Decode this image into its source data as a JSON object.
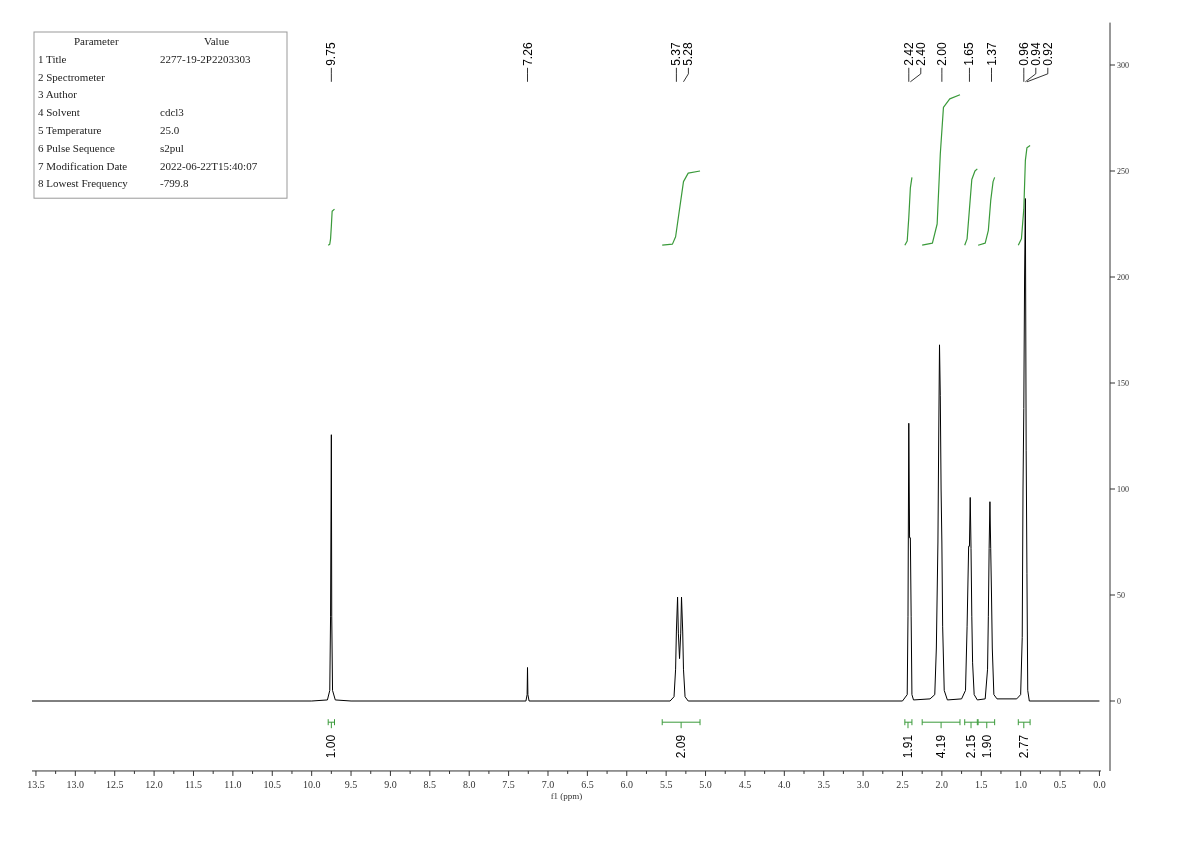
{
  "chart_data": [
    {
      "type": "other",
      "categories": [
        "Parameter",
        "1 Title",
        "2 Spectrometer",
        "3 Author",
        "4 Solvent",
        "5 Temperature",
        "6 Pulse Sequence",
        "7 Modification Date",
        "8 Lowest Frequency"
      ],
      "y2_categories": [
        "Value",
        "2277-19-2P2203303",
        null,
        null,
        "cdcl3",
        "25.0",
        "s2pul",
        "2022-06-22T15:40:07",
        "-799.8"
      ]
    },
    {
      "type": "line",
      "xlabel": "f1 (ppm)",
      "xlim": [
        13.55,
        -0.02
      ],
      "ylim": [
        -33,
        320
      ],
      "xticks": [
        13.5,
        {
          "value": 13.25,
          "label": null
        },
        {
          "value": 13,
          "label": "13.0"
        },
        {
          "value": 12.75,
          "label": null
        },
        12.5,
        {
          "value": 12.25,
          "label": null
        },
        {
          "value": 12,
          "label": "12.0"
        },
        {
          "value": 11.75,
          "label": null
        },
        11.5,
        {
          "value": 11.25,
          "label": null
        },
        {
          "value": 11,
          "label": "11.0"
        },
        {
          "value": 10.75,
          "label": null
        },
        10.5,
        {
          "value": 10.25,
          "label": null
        },
        {
          "value": 10,
          "label": "10.0"
        },
        {
          "value": 9.75,
          "label": null
        },
        9.5,
        {
          "value": 9.25,
          "label": null
        },
        {
          "value": 9,
          "label": "9.0"
        },
        {
          "value": 8.75,
          "label": null
        },
        8.5,
        {
          "value": 8.25,
          "label": null
        },
        {
          "value": 8,
          "label": "8.0"
        },
        {
          "value": 7.75,
          "label": null
        },
        7.5,
        {
          "value": 7.25,
          "label": null
        },
        {
          "value": 7,
          "label": "7.0"
        },
        {
          "value": 6.75,
          "label": null
        },
        6.5,
        {
          "value": 6.25,
          "label": null
        },
        {
          "value": 6,
          "label": "6.0"
        },
        {
          "value": 5.75,
          "label": null
        },
        5.5,
        {
          "value": 5.25,
          "label": null
        },
        {
          "value": 5,
          "label": "5.0"
        },
        {
          "value": 4.75,
          "label": null
        },
        4.5,
        {
          "value": 4.25,
          "label": null
        },
        {
          "value": 4,
          "label": "4.0"
        },
        {
          "value": 3.75,
          "label": null
        },
        3.5,
        {
          "value": 3.25,
          "label": null
        },
        {
          "value": 3,
          "label": "3.0"
        },
        {
          "value": 2.75,
          "label": null
        },
        2.5,
        {
          "value": 2.25,
          "label": null
        },
        {
          "value": 2,
          "label": "2.0"
        },
        {
          "value": 1.75,
          "label": null
        },
        1.5,
        {
          "value": 1.25,
          "label": null
        },
        {
          "value": 1,
          "label": "1.0"
        },
        {
          "value": 0.75,
          "label": null
        },
        0.5,
        {
          "value": 0.25,
          "label": null
        },
        {
          "value": 0,
          "label": "0.0"
        }
      ],
      "yticks": [
        0,
        50,
        100,
        150,
        200,
        250,
        300
      ],
      "grid": false,
      "marker": "none",
      "line_style": "solid",
      "series": [
        {
          "color": "#000000",
          "x": [
            13.55,
            10.0,
            9.8,
            9.77,
            9.76,
            9.75,
            9.745,
            9.735,
            9.7,
            9.5,
            7.28,
            7.265,
            7.26,
            7.255,
            7.24,
            5.45,
            5.4,
            5.38,
            5.37,
            5.355,
            5.345,
            5.33,
            5.315,
            5.305,
            5.29,
            5.28,
            5.26,
            5.22,
            2.5,
            2.44,
            2.43,
            2.42,
            2.41,
            2.4,
            2.39,
            2.38,
            2.36,
            2.15,
            2.09,
            2.07,
            2.05,
            2.04,
            2.03,
            2.02,
            2.01,
            2.0,
            1.99,
            1.97,
            1.93,
            1.75,
            1.7,
            1.68,
            1.66,
            1.65,
            1.64,
            1.63,
            1.62,
            1.61,
            1.59,
            1.55,
            1.45,
            1.42,
            1.41,
            1.4,
            1.39,
            1.38,
            1.37,
            1.36,
            1.34,
            1.3,
            1.05,
            1.0,
            0.98,
            0.97,
            0.96,
            0.95,
            0.94,
            0.93,
            0.92,
            0.91,
            0.89,
            0.0
          ],
          "values": [
            0,
            0,
            0.5,
            5,
            40,
            125.6,
            40,
            5,
            0.5,
            0,
            0,
            3,
            15.8,
            3,
            0,
            0,
            2,
            15,
            33,
            49,
            32,
            20,
            32,
            49,
            33,
            15,
            2,
            0,
            0,
            3,
            40,
            131,
            77,
            77,
            40,
            3,
            0.5,
            1,
            3,
            25,
            75,
            125,
            168,
            144,
            100,
            75,
            35,
            5,
            0.5,
            1,
            5,
            35,
            73,
            73,
            96,
            72,
            40,
            18,
            3,
            0.5,
            1,
            15,
            40,
            72,
            94,
            72,
            50,
            25,
            3,
            1,
            1,
            3,
            30,
            100,
            138,
            200,
            237,
            118,
            60,
            5,
            0,
            0
          ]
        },
        {
          "type": "line",
          "color": "#3a9a3a",
          "x": [
            9.79,
            9.77,
            9.76,
            9.75,
            9.74,
            9.71
          ],
          "values": [
            215,
            215.5,
            218,
            224,
            231,
            232
          ]
        },
        {
          "type": "line",
          "color": "#3a9a3a",
          "x": [
            5.55,
            5.42,
            5.38,
            5.33,
            5.28,
            5.22,
            5.07
          ],
          "values": [
            215,
            215.5,
            219,
            232,
            245,
            249,
            250
          ]
        },
        {
          "type": "line",
          "color": "#3a9a3a",
          "x": [
            2.47,
            2.44,
            2.42,
            2.4,
            2.38
          ],
          "values": [
            215,
            217,
            228,
            242,
            247
          ]
        },
        {
          "type": "line",
          "color": "#3a9a3a",
          "x": [
            2.25,
            2.12,
            2.06,
            2.02,
            1.98,
            1.9,
            1.77
          ],
          "values": [
            215,
            216,
            225,
            258,
            280,
            284,
            286
          ]
        },
        {
          "type": "line",
          "color": "#3a9a3a",
          "x": [
            1.71,
            1.68,
            1.65,
            1.62,
            1.58,
            1.55
          ],
          "values": [
            215,
            218,
            232,
            246,
            250,
            251
          ]
        },
        {
          "type": "line",
          "color": "#3a9a3a",
          "x": [
            1.54,
            1.45,
            1.41,
            1.38,
            1.35,
            1.33
          ],
          "values": [
            215,
            216,
            222,
            236,
            245,
            247
          ]
        },
        {
          "type": "line",
          "color": "#3a9a3a",
          "x": [
            1.03,
            0.99,
            0.96,
            0.94,
            0.92,
            0.88
          ],
          "values": [
            215,
            218,
            232,
            255,
            261,
            262
          ]
        }
      ],
      "annotations": [
        {
          "text": "9.75",
          "x": 9.75
        },
        {
          "text": "7.26",
          "x": 7.26
        },
        {
          "text": "5.37",
          "x": 5.37
        },
        {
          "text": "5.28",
          "x": 5.28
        },
        {
          "text": "2.42",
          "x": 2.42
        },
        {
          "text": "2.40",
          "x": 2.4
        },
        {
          "text": "2.00",
          "x": 2.0
        },
        {
          "text": "1.65",
          "x": 1.65
        },
        {
          "text": "1.37",
          "x": 1.37
        },
        {
          "text": "0.96",
          "x": 0.96
        },
        {
          "text": "0.94",
          "x": 0.94
        },
        {
          "text": "0.92",
          "x": 0.92
        },
        {
          "text": "1.00",
          "x": 9.75
        },
        {
          "text": "2.09",
          "x": 5.31
        },
        {
          "text": "1.91",
          "x": 2.43
        },
        {
          "text": "4.19",
          "x": 2.01
        },
        {
          "text": "2.15",
          "x": 1.63
        },
        {
          "text": "1.90",
          "x": 1.43
        },
        {
          "text": "2.77",
          "x": 0.96
        }
      ]
    }
  ]
}
